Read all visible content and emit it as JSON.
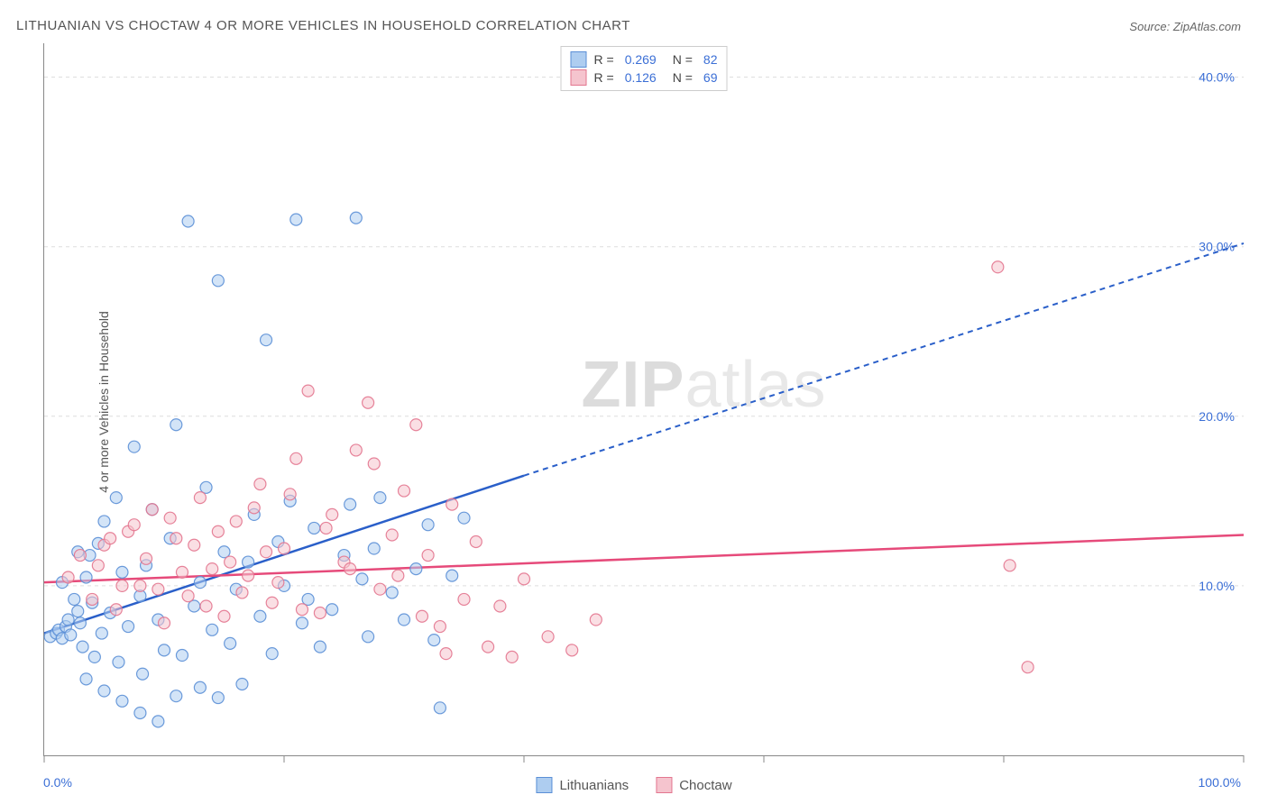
{
  "title": "LITHUANIAN VS CHOCTAW 4 OR MORE VEHICLES IN HOUSEHOLD CORRELATION CHART",
  "source_label": "Source:",
  "source_value": "ZipAtlas.com",
  "ylabel": "4 or more Vehicles in Household",
  "watermark_zip": "ZIP",
  "watermark_atlas": "atlas",
  "chart": {
    "type": "scatter",
    "xlim": [
      0,
      100
    ],
    "ylim": [
      0,
      42
    ],
    "xtick_positions": [
      0,
      20,
      40,
      60,
      80,
      100
    ],
    "xtick_labels_shown": {
      "0": "0.0%",
      "100": "100.0%"
    },
    "ytick_positions": [
      10,
      20,
      30,
      40
    ],
    "ytick_labels": [
      "10.0%",
      "20.0%",
      "30.0%",
      "40.0%"
    ],
    "grid_color": "#dddddd",
    "axis_color": "#888888",
    "value_text_color": "#3b6fd6",
    "background_color": "#ffffff",
    "series": [
      {
        "name": "Lithuanians",
        "marker_fill": "#aecdf0",
        "marker_stroke": "#5b8fd6",
        "marker_radius": 6.5,
        "stroke_opacity": 0.9,
        "fill_opacity": 0.55,
        "R": "0.269",
        "N": "82",
        "trend_color": "#2a5fc9",
        "trend_solid": {
          "x1": 0,
          "y1": 7.2,
          "x2": 40,
          "y2": 16.5
        },
        "trend_dashed": {
          "x1": 40,
          "y1": 16.5,
          "x2": 100,
          "y2": 30.2
        },
        "points": [
          [
            0.5,
            7.0
          ],
          [
            1.0,
            7.2
          ],
          [
            1.2,
            7.4
          ],
          [
            1.5,
            6.9
          ],
          [
            1.8,
            7.6
          ],
          [
            2.0,
            8.0
          ],
          [
            2.2,
            7.1
          ],
          [
            2.5,
            9.2
          ],
          [
            2.8,
            8.5
          ],
          [
            3.0,
            7.8
          ],
          [
            3.2,
            6.4
          ],
          [
            3.5,
            10.5
          ],
          [
            3.8,
            11.8
          ],
          [
            4.0,
            9.0
          ],
          [
            4.5,
            12.5
          ],
          [
            4.8,
            7.2
          ],
          [
            5.0,
            13.8
          ],
          [
            5.5,
            8.4
          ],
          [
            6.0,
            15.2
          ],
          [
            6.2,
            5.5
          ],
          [
            6.5,
            10.8
          ],
          [
            7.0,
            7.6
          ],
          [
            7.5,
            18.2
          ],
          [
            8.0,
            9.4
          ],
          [
            8.2,
            4.8
          ],
          [
            8.5,
            11.2
          ],
          [
            9.0,
            14.5
          ],
          [
            9.5,
            8.0
          ],
          [
            10.0,
            6.2
          ],
          [
            10.5,
            12.8
          ],
          [
            11.0,
            19.5
          ],
          [
            11.5,
            5.9
          ],
          [
            12.0,
            31.5
          ],
          [
            12.5,
            8.8
          ],
          [
            13.0,
            10.2
          ],
          [
            13.5,
            15.8
          ],
          [
            14.0,
            7.4
          ],
          [
            14.5,
            28.0
          ],
          [
            15.0,
            12.0
          ],
          [
            15.5,
            6.6
          ],
          [
            16.0,
            9.8
          ],
          [
            16.5,
            4.2
          ],
          [
            17.0,
            11.4
          ],
          [
            17.5,
            14.2
          ],
          [
            18.0,
            8.2
          ],
          [
            18.5,
            24.5
          ],
          [
            19.0,
            6.0
          ],
          [
            19.5,
            12.6
          ],
          [
            20.0,
            10.0
          ],
          [
            20.5,
            15.0
          ],
          [
            21.0,
            31.6
          ],
          [
            21.5,
            7.8
          ],
          [
            22.0,
            9.2
          ],
          [
            22.5,
            13.4
          ],
          [
            23.0,
            6.4
          ],
          [
            24.0,
            8.6
          ],
          [
            25.0,
            11.8
          ],
          [
            25.5,
            14.8
          ],
          [
            26.0,
            31.7
          ],
          [
            26.5,
            10.4
          ],
          [
            27.0,
            7.0
          ],
          [
            27.5,
            12.2
          ],
          [
            28.0,
            15.2
          ],
          [
            29.0,
            9.6
          ],
          [
            30.0,
            8.0
          ],
          [
            31.0,
            11.0
          ],
          [
            32.0,
            13.6
          ],
          [
            32.5,
            6.8
          ],
          [
            33.0,
            2.8
          ],
          [
            34.0,
            10.6
          ],
          [
            35.0,
            14.0
          ],
          [
            3.5,
            4.5
          ],
          [
            5.0,
            3.8
          ],
          [
            6.5,
            3.2
          ],
          [
            8.0,
            2.5
          ],
          [
            9.5,
            2.0
          ],
          [
            11.0,
            3.5
          ],
          [
            13.0,
            4.0
          ],
          [
            14.5,
            3.4
          ],
          [
            4.2,
            5.8
          ],
          [
            2.8,
            12.0
          ],
          [
            1.5,
            10.2
          ]
        ]
      },
      {
        "name": "Choctaw",
        "marker_fill": "#f5c4ce",
        "marker_stroke": "#e3768f",
        "marker_radius": 6.5,
        "stroke_opacity": 0.9,
        "fill_opacity": 0.55,
        "R": "0.126",
        "N": "69",
        "trend_color": "#e64a7a",
        "trend_solid": {
          "x1": 0,
          "y1": 10.2,
          "x2": 100,
          "y2": 13.0
        },
        "points": [
          [
            2.0,
            10.5
          ],
          [
            3.0,
            11.8
          ],
          [
            4.0,
            9.2
          ],
          [
            5.0,
            12.4
          ],
          [
            6.0,
            8.6
          ],
          [
            7.0,
            13.2
          ],
          [
            8.0,
            10.0
          ],
          [
            9.0,
            14.5
          ],
          [
            10.0,
            7.8
          ],
          [
            11.0,
            12.8
          ],
          [
            12.0,
            9.4
          ],
          [
            13.0,
            15.2
          ],
          [
            14.0,
            11.0
          ],
          [
            15.0,
            8.2
          ],
          [
            16.0,
            13.8
          ],
          [
            17.0,
            10.6
          ],
          [
            18.0,
            16.0
          ],
          [
            19.0,
            9.0
          ],
          [
            20.0,
            12.2
          ],
          [
            21.0,
            17.5
          ],
          [
            22.0,
            21.5
          ],
          [
            23.0,
            8.4
          ],
          [
            24.0,
            14.2
          ],
          [
            25.0,
            11.4
          ],
          [
            26.0,
            18.0
          ],
          [
            27.0,
            20.8
          ],
          [
            28.0,
            9.8
          ],
          [
            29.0,
            13.0
          ],
          [
            30.0,
            15.6
          ],
          [
            31.0,
            19.5
          ],
          [
            32.0,
            11.8
          ],
          [
            33.0,
            7.6
          ],
          [
            34.0,
            14.8
          ],
          [
            35.0,
            9.2
          ],
          [
            36.0,
            12.6
          ],
          [
            37.0,
            6.4
          ],
          [
            38.0,
            8.8
          ],
          [
            39.0,
            5.8
          ],
          [
            40.0,
            10.4
          ],
          [
            42.0,
            7.0
          ],
          [
            44.0,
            6.2
          ],
          [
            46.0,
            8.0
          ],
          [
            4.5,
            11.2
          ],
          [
            5.5,
            12.8
          ],
          [
            6.5,
            10.0
          ],
          [
            7.5,
            13.6
          ],
          [
            8.5,
            11.6
          ],
          [
            9.5,
            9.8
          ],
          [
            10.5,
            14.0
          ],
          [
            11.5,
            10.8
          ],
          [
            12.5,
            12.4
          ],
          [
            13.5,
            8.8
          ],
          [
            14.5,
            13.2
          ],
          [
            15.5,
            11.4
          ],
          [
            16.5,
            9.6
          ],
          [
            17.5,
            14.6
          ],
          [
            18.5,
            12.0
          ],
          [
            19.5,
            10.2
          ],
          [
            20.5,
            15.4
          ],
          [
            21.5,
            8.6
          ],
          [
            23.5,
            13.4
          ],
          [
            25.5,
            11.0
          ],
          [
            27.5,
            17.2
          ],
          [
            29.5,
            10.6
          ],
          [
            31.5,
            8.2
          ],
          [
            33.5,
            6.0
          ],
          [
            79.5,
            28.8
          ],
          [
            80.5,
            11.2
          ],
          [
            82.0,
            5.2
          ]
        ]
      }
    ],
    "legend_box": {
      "R_label": "R =",
      "N_label": "N ="
    },
    "bottom_legend": {
      "items": [
        "Lithuanians",
        "Choctaw"
      ]
    }
  }
}
